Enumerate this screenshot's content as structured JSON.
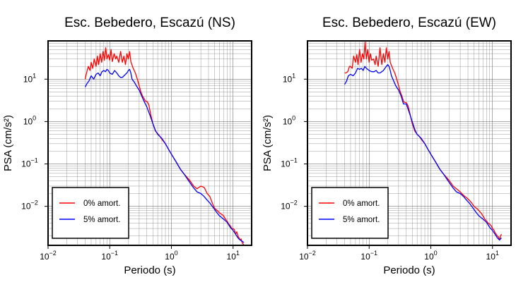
{
  "chart_data": [
    {
      "type": "line",
      "title": "Esc. Bebedero, Escazú (NS)",
      "xlabel": "Periodo (s)",
      "ylabel": "PSA (cm/s²)",
      "xscale": "log",
      "yscale": "log",
      "xlim": [
        0.01,
        20
      ],
      "ylim": [
        0.0012,
        80
      ],
      "grid": true,
      "legend_position": "bottom-left",
      "x_ticks": [
        {
          "value": 0.01,
          "base": "10",
          "exp": "−2"
        },
        {
          "value": 0.1,
          "base": "10",
          "exp": "−1"
        },
        {
          "value": 1,
          "base": "10",
          "exp": "0"
        },
        {
          "value": 10,
          "base": "10",
          "exp": "1"
        }
      ],
      "y_ticks": [
        {
          "value": 0.01,
          "base": "10",
          "exp": "−2"
        },
        {
          "value": 0.1,
          "base": "10",
          "exp": "−1"
        },
        {
          "value": 1,
          "base": "10",
          "exp": "0"
        },
        {
          "value": 10,
          "base": "10",
          "exp": "1"
        }
      ],
      "series": [
        {
          "name": "0% amort.",
          "color": "#ff0000",
          "x": [
            0.04,
            0.042,
            0.045,
            0.048,
            0.05,
            0.053,
            0.056,
            0.06,
            0.063,
            0.066,
            0.07,
            0.074,
            0.078,
            0.082,
            0.086,
            0.09,
            0.095,
            0.1,
            0.105,
            0.11,
            0.118,
            0.125,
            0.13,
            0.14,
            0.15,
            0.16,
            0.17,
            0.18,
            0.19,
            0.2,
            0.21,
            0.22,
            0.24,
            0.26,
            0.28,
            0.3,
            0.32,
            0.34,
            0.36,
            0.38,
            0.4,
            0.43,
            0.46,
            0.5,
            0.55,
            0.6,
            0.65,
            0.7,
            0.8,
            0.9,
            1.0,
            1.2,
            1.4,
            1.6,
            1.8,
            2.0,
            2.3,
            2.6,
            3.0,
            3.4,
            3.8,
            4.2,
            4.6,
            5,
            5.5,
            6,
            6.5,
            7,
            7.5,
            8,
            8.5,
            9,
            9.5,
            10,
            10.5,
            11,
            11.5,
            12,
            12.5,
            13,
            13.5,
            14,
            14.5,
            15
          ],
          "y": [
            10,
            14,
            20,
            16,
            25,
            18,
            30,
            20,
            35,
            22,
            40,
            25,
            45,
            28,
            55,
            30,
            38,
            28,
            50,
            26,
            40,
            30,
            35,
            25,
            45,
            25,
            35,
            22,
            40,
            30,
            45,
            26,
            18,
            14,
            10,
            7,
            5,
            4,
            3.5,
            3,
            3,
            2.5,
            1.5,
            0.9,
            0.6,
            0.52,
            0.45,
            0.38,
            0.3,
            0.22,
            0.17,
            0.11,
            0.075,
            0.058,
            0.048,
            0.04,
            0.03,
            0.026,
            0.03,
            0.028,
            0.02,
            0.017,
            0.012,
            0.009,
            0.008,
            0.007,
            0.0065,
            0.006,
            0.005,
            0.0045,
            0.0038,
            0.0035,
            0.003,
            0.003,
            0.0028,
            0.0022,
            0.0025,
            0.002,
            0.0018,
            0.0016,
            0.0017,
            0.0014,
            0.0013,
            0.0012
          ]
        },
        {
          "name": "5% amort.",
          "color": "#0000ff",
          "x": [
            0.04,
            0.043,
            0.046,
            0.05,
            0.055,
            0.06,
            0.065,
            0.07,
            0.075,
            0.08,
            0.085,
            0.09,
            0.095,
            0.1,
            0.11,
            0.12,
            0.13,
            0.14,
            0.15,
            0.16,
            0.17,
            0.18,
            0.19,
            0.2,
            0.21,
            0.22,
            0.23,
            0.25,
            0.27,
            0.3,
            0.33,
            0.36,
            0.4,
            0.45,
            0.5,
            0.55,
            0.6,
            0.7,
            0.8,
            0.9,
            1.0,
            1.2,
            1.4,
            1.6,
            1.8,
            2.0,
            2.3,
            2.6,
            3.0,
            3.4,
            3.8,
            4.2,
            4.6,
            5,
            5.5,
            6,
            7,
            8,
            9,
            10,
            11,
            12,
            13,
            14,
            15
          ],
          "y": [
            6.5,
            8,
            9,
            12,
            10,
            13,
            14,
            12,
            15,
            16,
            15,
            17,
            16,
            14,
            13,
            16,
            14,
            12,
            11,
            11,
            12,
            13,
            14,
            16,
            17,
            14,
            10,
            8.5,
            7,
            5.5,
            4,
            3,
            2.2,
            1.4,
            0.9,
            0.62,
            0.5,
            0.4,
            0.3,
            0.22,
            0.17,
            0.11,
            0.075,
            0.058,
            0.045,
            0.036,
            0.027,
            0.022,
            0.02,
            0.017,
            0.014,
            0.012,
            0.01,
            0.0085,
            0.007,
            0.006,
            0.005,
            0.0042,
            0.0032,
            0.0027,
            0.0022,
            0.0018,
            0.0016,
            0.0015,
            0.0014
          ]
        }
      ]
    },
    {
      "type": "line",
      "title": "Esc. Bebedero, Escazú (EW)",
      "xlabel": "Periodo (s)",
      "ylabel": "PSA (cm/s²)",
      "xscale": "log",
      "yscale": "log",
      "xlim": [
        0.01,
        20
      ],
      "ylim": [
        0.0012,
        80
      ],
      "grid": true,
      "legend_position": "bottom-left",
      "x_ticks": [
        {
          "value": 0.01,
          "base": "10",
          "exp": "−2"
        },
        {
          "value": 0.1,
          "base": "10",
          "exp": "−1"
        },
        {
          "value": 1,
          "base": "10",
          "exp": "0"
        },
        {
          "value": 10,
          "base": "10",
          "exp": "1"
        }
      ],
      "y_ticks": [
        {
          "value": 0.01,
          "base": "10",
          "exp": "−2"
        },
        {
          "value": 0.1,
          "base": "10",
          "exp": "−1"
        },
        {
          "value": 1,
          "base": "10",
          "exp": "0"
        },
        {
          "value": 10,
          "base": "10",
          "exp": "1"
        }
      ],
      "series": [
        {
          "name": "0% amort.",
          "color": "#ff0000",
          "x": [
            0.04,
            0.042,
            0.045,
            0.048,
            0.05,
            0.053,
            0.056,
            0.06,
            0.063,
            0.066,
            0.07,
            0.074,
            0.078,
            0.082,
            0.086,
            0.09,
            0.095,
            0.1,
            0.105,
            0.11,
            0.118,
            0.125,
            0.13,
            0.14,
            0.15,
            0.16,
            0.17,
            0.18,
            0.19,
            0.2,
            0.21,
            0.22,
            0.24,
            0.26,
            0.28,
            0.3,
            0.32,
            0.34,
            0.36,
            0.38,
            0.4,
            0.43,
            0.46,
            0.5,
            0.55,
            0.6,
            0.65,
            0.7,
            0.8,
            0.9,
            1.0,
            1.2,
            1.4,
            1.6,
            1.8,
            2.0,
            2.3,
            2.6,
            3.0,
            3.4,
            3.8,
            4.2,
            4.6,
            5,
            5.5,
            6,
            6.5,
            7,
            7.5,
            8,
            8.5,
            9,
            9.5,
            10,
            10.5,
            11,
            11.5,
            12,
            12.5,
            13,
            13.5,
            14
          ],
          "y": [
            14,
            14,
            15,
            20,
            20,
            18,
            35,
            25,
            38,
            22,
            50,
            25,
            40,
            30,
            75,
            30,
            50,
            25,
            40,
            28,
            30,
            22,
            35,
            20,
            55,
            22,
            40,
            25,
            55,
            30,
            45,
            25,
            18,
            14,
            10,
            7,
            5,
            4,
            3,
            2.8,
            2.8,
            2.3,
            1.5,
            0.9,
            0.6,
            0.5,
            0.45,
            0.38,
            0.3,
            0.22,
            0.17,
            0.11,
            0.075,
            0.058,
            0.048,
            0.04,
            0.03,
            0.026,
            0.022,
            0.018,
            0.016,
            0.014,
            0.012,
            0.01,
            0.009,
            0.008,
            0.007,
            0.006,
            0.005,
            0.0045,
            0.004,
            0.0038,
            0.0035,
            0.003,
            0.0028,
            0.0024,
            0.0022,
            0.002,
            0.0019,
            0.0016,
            0.002,
            0.0022
          ]
        },
        {
          "name": "5% amort.",
          "color": "#0000ff",
          "x": [
            0.04,
            0.043,
            0.046,
            0.05,
            0.055,
            0.06,
            0.065,
            0.07,
            0.075,
            0.08,
            0.085,
            0.09,
            0.095,
            0.1,
            0.11,
            0.12,
            0.13,
            0.14,
            0.15,
            0.16,
            0.17,
            0.18,
            0.19,
            0.2,
            0.21,
            0.22,
            0.23,
            0.25,
            0.27,
            0.3,
            0.33,
            0.36,
            0.4,
            0.45,
            0.5,
            0.55,
            0.6,
            0.7,
            0.8,
            0.9,
            1.0,
            1.2,
            1.4,
            1.6,
            1.8,
            2.0,
            2.3,
            2.6,
            3.0,
            3.4,
            3.8,
            4.2,
            4.6,
            5,
            5.5,
            6,
            7,
            8,
            9,
            10,
            11,
            12,
            13,
            14
          ],
          "y": [
            7.5,
            9,
            12,
            13,
            12,
            14,
            18,
            17,
            18,
            16,
            20,
            18,
            17,
            16,
            15,
            15,
            16,
            14,
            14,
            15,
            16,
            18,
            20,
            22,
            20,
            16,
            12,
            9,
            7,
            5.5,
            4,
            2.6,
            2.6,
            1.6,
            1.0,
            0.65,
            0.5,
            0.4,
            0.3,
            0.22,
            0.17,
            0.11,
            0.075,
            0.058,
            0.045,
            0.036,
            0.027,
            0.022,
            0.02,
            0.017,
            0.014,
            0.012,
            0.01,
            0.0085,
            0.007,
            0.006,
            0.005,
            0.0042,
            0.0032,
            0.0027,
            0.0022,
            0.0018,
            0.0016,
            0.0018
          ]
        }
      ]
    }
  ]
}
